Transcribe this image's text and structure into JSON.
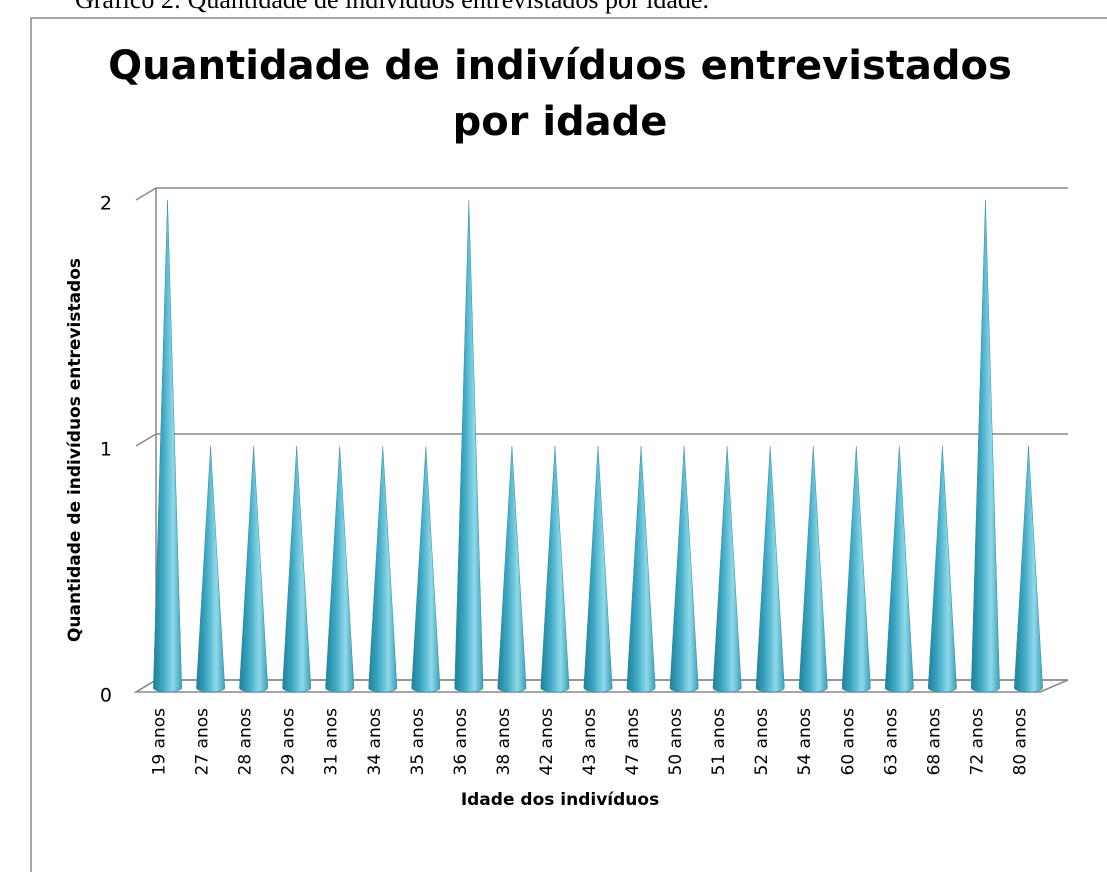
{
  "caption": "Gráfico 2: Quantidade de indivíduos entrevistados por idade.",
  "chart_data": {
    "type": "cone",
    "title": "Quantidade de indivíduos entrevistados por idade",
    "xlabel": "Idade dos indivíduos",
    "ylabel": "Quantidade de indivíduos entrevistados",
    "categories": [
      "19 anos",
      "27 anos",
      "28 anos",
      "29 anos",
      "31 anos",
      "34 anos",
      "35 anos",
      "36 anos",
      "38 anos",
      "42 anos",
      "43 anos",
      "47 anos",
      "50 anos",
      "51 anos",
      "52 anos",
      "54 anos",
      "60 anos",
      "63 anos",
      "68 anos",
      "72 anos",
      "80 anos"
    ],
    "values": [
      2,
      1,
      1,
      1,
      1,
      1,
      1,
      2,
      1,
      1,
      1,
      1,
      1,
      1,
      1,
      1,
      1,
      1,
      1,
      2,
      1
    ],
    "color": "#4bb5cf",
    "ylim": [
      0,
      2
    ],
    "yticks": [
      0,
      1,
      2
    ],
    "grid": true
  }
}
